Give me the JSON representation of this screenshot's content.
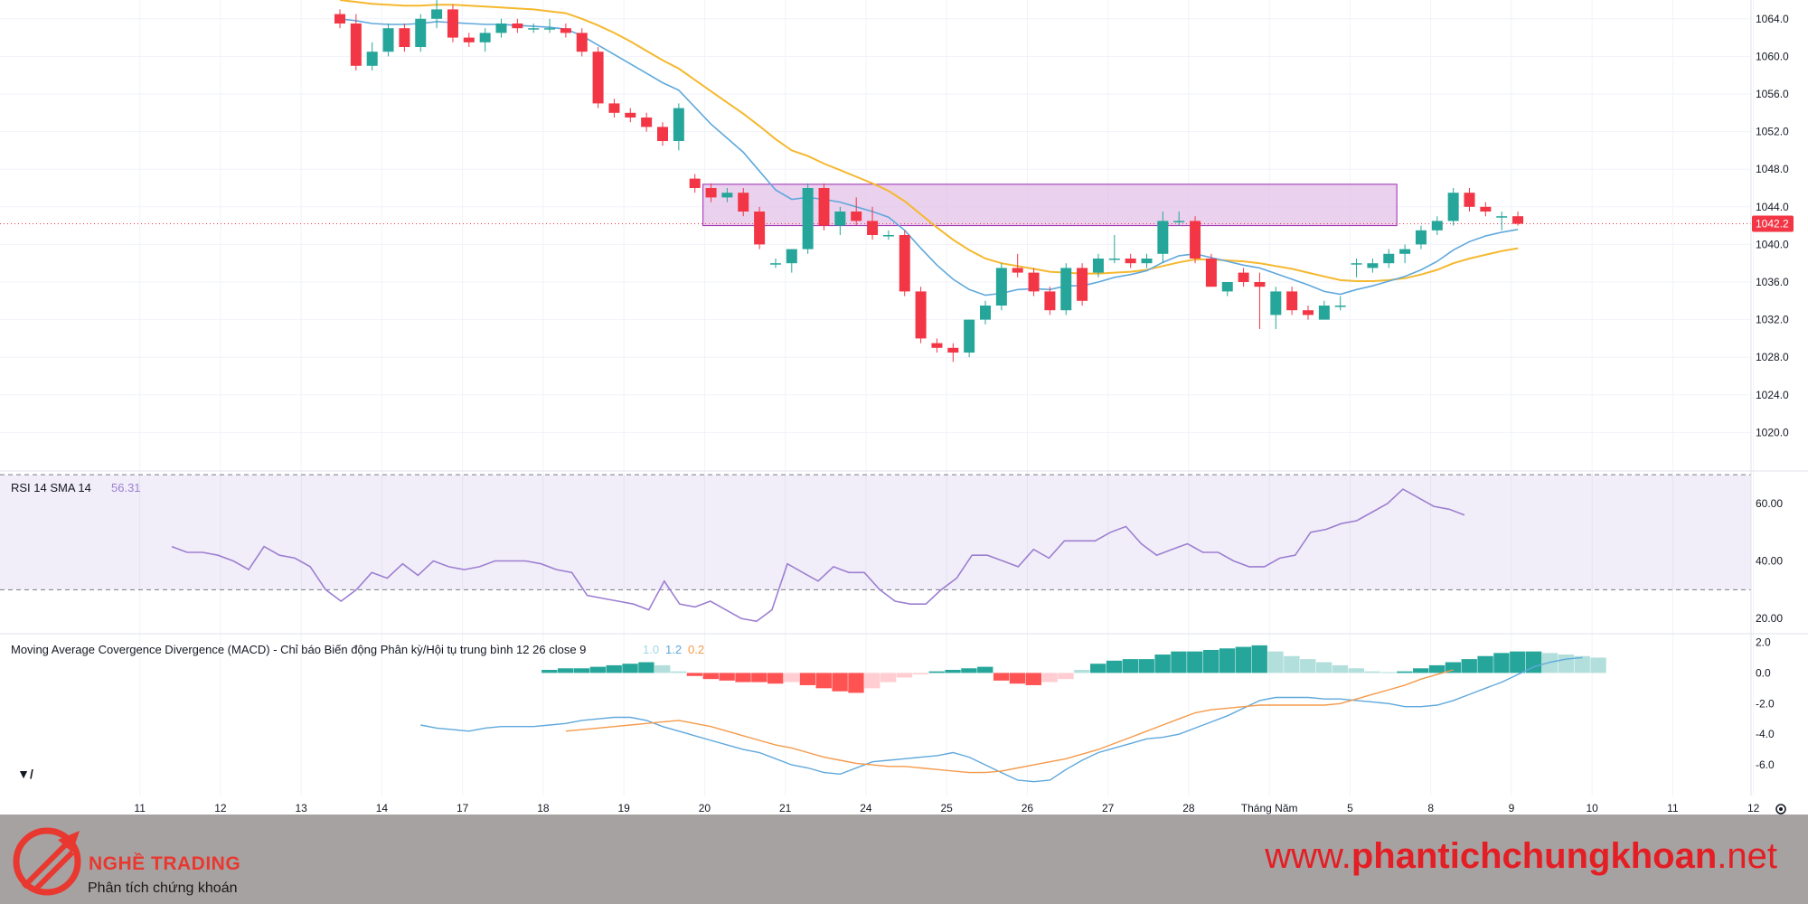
{
  "chart_data": {
    "type": "candlestick",
    "price_axis": {
      "ticks": [
        "1064.0",
        "1060.0",
        "1056.0",
        "1052.0",
        "1048.0",
        "1044.0",
        "1040.0",
        "1036.0",
        "1032.0",
        "1028.0",
        "1024.0",
        "1020.0"
      ],
      "range": [
        1016,
        1066
      ]
    },
    "last_price": "1042.2",
    "zone": {
      "from_bar": 23,
      "to_bar": 65,
      "low": 1042.0,
      "high": 1046.4
    },
    "candles": [
      [
        1064.5,
        1065.0,
        1063.0,
        1063.5
      ],
      [
        1063.5,
        1064.5,
        1058.5,
        1059.0
      ],
      [
        1059.0,
        1061.5,
        1058.5,
        1060.5
      ],
      [
        1060.5,
        1063.5,
        1060.0,
        1063.0
      ],
      [
        1063.0,
        1063.5,
        1060.5,
        1061.0
      ],
      [
        1061.0,
        1064.5,
        1060.5,
        1064.0
      ],
      [
        1064.0,
        1066.0,
        1063.0,
        1065.0
      ],
      [
        1065.0,
        1065.5,
        1061.5,
        1062.0
      ],
      [
        1062.0,
        1062.5,
        1061.0,
        1061.5
      ],
      [
        1061.5,
        1063.0,
        1060.5,
        1062.5
      ],
      [
        1062.5,
        1064.0,
        1062.0,
        1063.5
      ],
      [
        1063.5,
        1064.0,
        1062.5,
        1063.0
      ],
      [
        1063.0,
        1063.5,
        1062.5,
        1063.0
      ],
      [
        1063.0,
        1064.0,
        1062.5,
        1063.0
      ],
      [
        1063.0,
        1063.5,
        1062.0,
        1062.5
      ],
      [
        1062.5,
        1063.0,
        1060.0,
        1060.5
      ],
      [
        1060.5,
        1061.0,
        1054.5,
        1055.0
      ],
      [
        1055.0,
        1055.5,
        1053.5,
        1054.0
      ],
      [
        1054.0,
        1054.5,
        1053.0,
        1053.5
      ],
      [
        1053.5,
        1054.0,
        1052.0,
        1052.5
      ],
      [
        1052.5,
        1053.0,
        1050.5,
        1051.0
      ],
      [
        1051.0,
        1055.0,
        1050.0,
        1054.5
      ],
      [
        1047.0,
        1047.5,
        1045.5,
        1046.0
      ],
      [
        1046.0,
        1046.5,
        1044.5,
        1045.0
      ],
      [
        1045.0,
        1046.0,
        1044.5,
        1045.5
      ],
      [
        1045.5,
        1046.0,
        1043.0,
        1043.5
      ],
      [
        1043.5,
        1044.0,
        1039.5,
        1040.0
      ],
      [
        1038.0,
        1038.5,
        1037.5,
        1038.0
      ],
      [
        1038.0,
        1039.5,
        1037.0,
        1039.5
      ],
      [
        1039.5,
        1046.5,
        1039.0,
        1046.0
      ],
      [
        1046.0,
        1046.5,
        1041.5,
        1042.0
      ],
      [
        1042.0,
        1044.0,
        1041.0,
        1043.5
      ],
      [
        1043.5,
        1045.0,
        1042.0,
        1042.5
      ],
      [
        1042.5,
        1044.0,
        1040.5,
        1041.0
      ],
      [
        1041.0,
        1041.5,
        1040.5,
        1041.0
      ],
      [
        1041.0,
        1041.5,
        1034.5,
        1035.0
      ],
      [
        1035.0,
        1035.5,
        1029.5,
        1030.0
      ],
      [
        1029.5,
        1030.0,
        1028.5,
        1029.0
      ],
      [
        1029.0,
        1029.5,
        1027.5,
        1028.5
      ],
      [
        1028.5,
        1032.0,
        1028.0,
        1032.0
      ],
      [
        1032.0,
        1034.0,
        1031.5,
        1033.5
      ],
      [
        1033.5,
        1038.0,
        1033.0,
        1037.5
      ],
      [
        1037.5,
        1039.0,
        1036.5,
        1037.0
      ],
      [
        1037.0,
        1037.5,
        1034.5,
        1035.0
      ],
      [
        1035.0,
        1035.5,
        1032.5,
        1033.0
      ],
      [
        1033.0,
        1038.0,
        1032.5,
        1037.5
      ],
      [
        1037.5,
        1038.0,
        1033.5,
        1034.0
      ],
      [
        1037.0,
        1039.0,
        1036.5,
        1038.5
      ],
      [
        1038.5,
        1041.0,
        1038.0,
        1038.5
      ],
      [
        1038.5,
        1039.0,
        1037.5,
        1038.0
      ],
      [
        1038.0,
        1039.0,
        1037.5,
        1038.5
      ],
      [
        1039.0,
        1043.5,
        1038.0,
        1042.5
      ],
      [
        1042.5,
        1043.5,
        1042.0,
        1042.5
      ],
      [
        1042.5,
        1043.0,
        1038.0,
        1038.5
      ],
      [
        1038.5,
        1039.0,
        1035.5,
        1035.5
      ],
      [
        1035.0,
        1036.0,
        1034.5,
        1036.0
      ],
      [
        1037.0,
        1037.5,
        1035.5,
        1036.0
      ],
      [
        1036.0,
        1037.0,
        1031.0,
        1035.5
      ],
      [
        1032.5,
        1035.5,
        1031.0,
        1035.0
      ],
      [
        1035.0,
        1035.5,
        1032.5,
        1033.0
      ],
      [
        1033.0,
        1033.5,
        1032.0,
        1032.5
      ],
      [
        1032.0,
        1034.0,
        1032.0,
        1033.5
      ],
      [
        1033.5,
        1034.5,
        1033.0,
        1033.5
      ],
      [
        1038.0,
        1038.5,
        1036.5,
        1038.0
      ],
      [
        1037.5,
        1038.5,
        1037.0,
        1038.0
      ],
      [
        1038.0,
        1039.5,
        1037.5,
        1039.0
      ],
      [
        1039.0,
        1040.0,
        1038.0,
        1039.5
      ],
      [
        1040.0,
        1042.0,
        1039.5,
        1041.5
      ],
      [
        1041.5,
        1043.0,
        1041.0,
        1042.5
      ],
      [
        1042.5,
        1046.0,
        1042.0,
        1045.5
      ],
      [
        1045.5,
        1046.0,
        1043.5,
        1044.0
      ],
      [
        1044.0,
        1044.5,
        1043.0,
        1043.5
      ],
      [
        1043.0,
        1043.5,
        1041.5,
        1043.0
      ],
      [
        1043.0,
        1043.5,
        1042.0,
        1042.2
      ]
    ],
    "ma_fast": [
      1064,
      1063.8,
      1063.5,
      1063.4,
      1063.4,
      1063.5,
      1063.7,
      1063.6,
      1063.5,
      1063.4,
      1063.4,
      1063.3,
      1063.2,
      1063.1,
      1062.9,
      1062.2,
      1061.2,
      1060.2,
      1059.2,
      1058.2,
      1057.2,
      1056.4,
      1054.6,
      1052.8,
      1051.3,
      1049.8,
      1047.8,
      1045.8,
      1044.8,
      1045.0,
      1044.8,
      1044.5,
      1044.0,
      1043.5,
      1042.9,
      1041.5,
      1039.6,
      1037.8,
      1036.3,
      1035.2,
      1034.6,
      1034.8,
      1035.2,
      1035.3,
      1035.2,
      1035.6,
      1035.6,
      1036.0,
      1036.5,
      1036.8,
      1037.2,
      1038.1,
      1038.8,
      1039.0,
      1038.6,
      1038.2,
      1037.8,
      1037.5,
      1036.9,
      1036.3,
      1035.7,
      1035.0,
      1034.7,
      1035.2,
      1035.6,
      1036.1,
      1036.6,
      1037.3,
      1038.2,
      1039.4,
      1040.3,
      1040.9,
      1041.3,
      1041.6
    ],
    "ma_slow": [
      1066,
      1065.8,
      1065.6,
      1065.5,
      1065.4,
      1065.4,
      1065.5,
      1065.5,
      1065.4,
      1065.3,
      1065.2,
      1065.1,
      1065.0,
      1064.8,
      1064.6,
      1064.0,
      1063.3,
      1062.5,
      1061.6,
      1060.6,
      1059.6,
      1058.7,
      1057.5,
      1056.3,
      1055.1,
      1053.9,
      1052.6,
      1051.2,
      1050.0,
      1049.4,
      1048.6,
      1047.9,
      1047.2,
      1046.5,
      1045.7,
      1044.6,
      1043.2,
      1041.8,
      1040.5,
      1039.4,
      1038.5,
      1038.0,
      1037.7,
      1037.4,
      1037.1,
      1037.0,
      1036.9,
      1036.9,
      1037.0,
      1037.1,
      1037.3,
      1037.7,
      1038.1,
      1038.4,
      1038.4,
      1038.3,
      1038.2,
      1038.0,
      1037.7,
      1037.4,
      1037.0,
      1036.6,
      1036.2,
      1036.1,
      1036.1,
      1036.2,
      1036.4,
      1036.8,
      1037.3,
      1038.0,
      1038.5,
      1038.9,
      1039.3,
      1039.6
    ],
    "rsi": {
      "label": "RSI 14 SMA 14",
      "value_label": "56.31",
      "axis": [
        "60.00",
        "40.00",
        "20.00"
      ],
      "range": [
        15,
        71
      ],
      "band": [
        30,
        70
      ],
      "start_bar": 5,
      "values": [
        45,
        43,
        43,
        42,
        40,
        37,
        45,
        42,
        41,
        38,
        30,
        26,
        30,
        36,
        34,
        39,
        35,
        40,
        38,
        37,
        38,
        40,
        40,
        40,
        39,
        37,
        36,
        28,
        27,
        26,
        25,
        23,
        33,
        25,
        24,
        26,
        23,
        20,
        19,
        23,
        39,
        36,
        33,
        38,
        36,
        36,
        30,
        26,
        25,
        25,
        30,
        34,
        42,
        42,
        40,
        38,
        44,
        41,
        47,
        47,
        47,
        50,
        52,
        46,
        42,
        44,
        46,
        43,
        43,
        40,
        38,
        38,
        41,
        42,
        50,
        51,
        53,
        54,
        57,
        60,
        65,
        62,
        59,
        58,
        56
      ],
      "values_note": ""
    },
    "macd": {
      "label": "Moving Average Covergence Divergence (MACD) - Chỉ báo Biến động Phân kỳ/Hội tụ trung bình 12 26 close 9",
      "v1": "1.0",
      "v2": "1.2",
      "v3": "0.2",
      "axis": [
        "2.0",
        "0.0",
        "-2.0",
        "-4.0",
        "-6.0"
      ],
      "range": [
        -8,
        2.5
      ],
      "macd_line": {
        "start_bar": 5,
        "values": [
          -3.4,
          -3.6,
          -3.7,
          -3.8,
          -3.6,
          -3.5,
          -3.5,
          -3.5,
          -3.4,
          -3.3,
          -3.1,
          -3.0,
          -2.9,
          -2.9,
          -3.1,
          -3.5,
          -3.8,
          -4.1,
          -4.4,
          -4.7,
          -5.0,
          -5.2,
          -5.6,
          -6.0,
          -6.2,
          -6.5,
          -6.6,
          -6.2,
          -5.8,
          -5.7,
          -5.6,
          -5.5,
          -5.4,
          -5.2,
          -5.5,
          -6.0,
          -6.5,
          -7.0,
          -7.1,
          -7.0,
          -6.3,
          -5.7,
          -5.2,
          -4.9,
          -4.6,
          -4.3,
          -4.2,
          -4.0,
          -3.6,
          -3.2,
          -2.8,
          -2.3,
          -1.8,
          -1.6,
          -1.6,
          -1.6,
          -1.7,
          -1.7,
          -1.8,
          -1.9,
          -2.0,
          -2.2,
          -2.2,
          -2.1,
          -1.8,
          -1.4,
          -1.0,
          -0.6,
          -0.1,
          0.4,
          0.7,
          0.9,
          1.0
        ]
      },
      "signal_line": {
        "start_bar": 14,
        "values": [
          -3.8,
          -3.7,
          -3.6,
          -3.5,
          -3.4,
          -3.3,
          -3.2,
          -3.1,
          -3.3,
          -3.5,
          -3.8,
          -4.1,
          -4.4,
          -4.7,
          -4.9,
          -5.2,
          -5.5,
          -5.7,
          -5.9,
          -6.0,
          -6.1,
          -6.1,
          -6.2,
          -6.3,
          -6.4,
          -6.5,
          -6.5,
          -6.4,
          -6.2,
          -6.0,
          -5.8,
          -5.6,
          -5.3,
          -5.0,
          -4.6,
          -4.2,
          -3.8,
          -3.4,
          -3.0,
          -2.6,
          -2.4,
          -2.3,
          -2.2,
          -2.1,
          -2.1,
          -2.1,
          -2.1,
          -2.1,
          -2.0,
          -1.7,
          -1.4,
          -1.1,
          -0.8,
          -0.4,
          -0.1,
          0.2
        ]
      },
      "histogram": {
        "start_bar": 13,
        "values": [
          0.2,
          0.3,
          0.3,
          0.4,
          0.5,
          0.6,
          0.7,
          0.5,
          0.1,
          -0.2,
          -0.4,
          -0.5,
          -0.6,
          -0.6,
          -0.7,
          -0.6,
          -0.8,
          -1.0,
          -1.2,
          -1.3,
          -1.0,
          -0.6,
          -0.3,
          -0.1,
          0.1,
          0.2,
          0.3,
          0.4,
          -0.5,
          -0.7,
          -0.8,
          -0.6,
          -0.4,
          0.2,
          0.6,
          0.8,
          0.9,
          0.9,
          1.2,
          1.4,
          1.4,
          1.5,
          1.6,
          1.7,
          1.8,
          1.4,
          1.1,
          0.9,
          0.7,
          0.5,
          0.3,
          0.1,
          0.05,
          0.1,
          0.3,
          0.5,
          0.7,
          0.9,
          1.1,
          1.3,
          1.4,
          1.4,
          1.3,
          1.2,
          1.1,
          1.0
        ]
      }
    },
    "time_axis": [
      {
        "label": "11",
        "bar": -12.4
      },
      {
        "label": "12",
        "bar": -7.4
      },
      {
        "label": "13",
        "bar": -2.4
      },
      {
        "label": "14",
        "bar": 2.6
      },
      {
        "label": "17",
        "bar": 7.6
      },
      {
        "label": "18",
        "bar": 12.6
      },
      {
        "label": "19",
        "bar": 17.6
      },
      {
        "label": "20",
        "bar": 22.6
      },
      {
        "label": "21",
        "bar": 27.6
      },
      {
        "label": "24",
        "bar": 32.6
      },
      {
        "label": "25",
        "bar": 37.6
      },
      {
        "label": "26",
        "bar": 42.6
      },
      {
        "label": "27",
        "bar": 47.6
      },
      {
        "label": "28",
        "bar": 52.6
      },
      {
        "label": "Tháng Năm",
        "bar": 57.6
      },
      {
        "label": "5",
        "bar": 62.6
      },
      {
        "label": "8",
        "bar": 67.6
      },
      {
        "label": "9",
        "bar": 72.6
      },
      {
        "label": "10",
        "bar": 77.6
      },
      {
        "label": "11",
        "bar": 82.6
      },
      {
        "label": "12",
        "bar": 87.6
      }
    ]
  },
  "footer": {
    "brand_name": "NGHỀ TRADING",
    "tagline": "Phân tích chứng khoán",
    "website_prefix": "www.",
    "website_bold": "phantichchungkhoan",
    "website_suffix": ".net"
  },
  "colors": {
    "up": "#26a69a",
    "down": "#f23645",
    "ma_fast": "#5fa8dc",
    "ma_slow": "#f5b82e",
    "rsi": "#9c7fd1",
    "zone": "#e1bee7"
  }
}
